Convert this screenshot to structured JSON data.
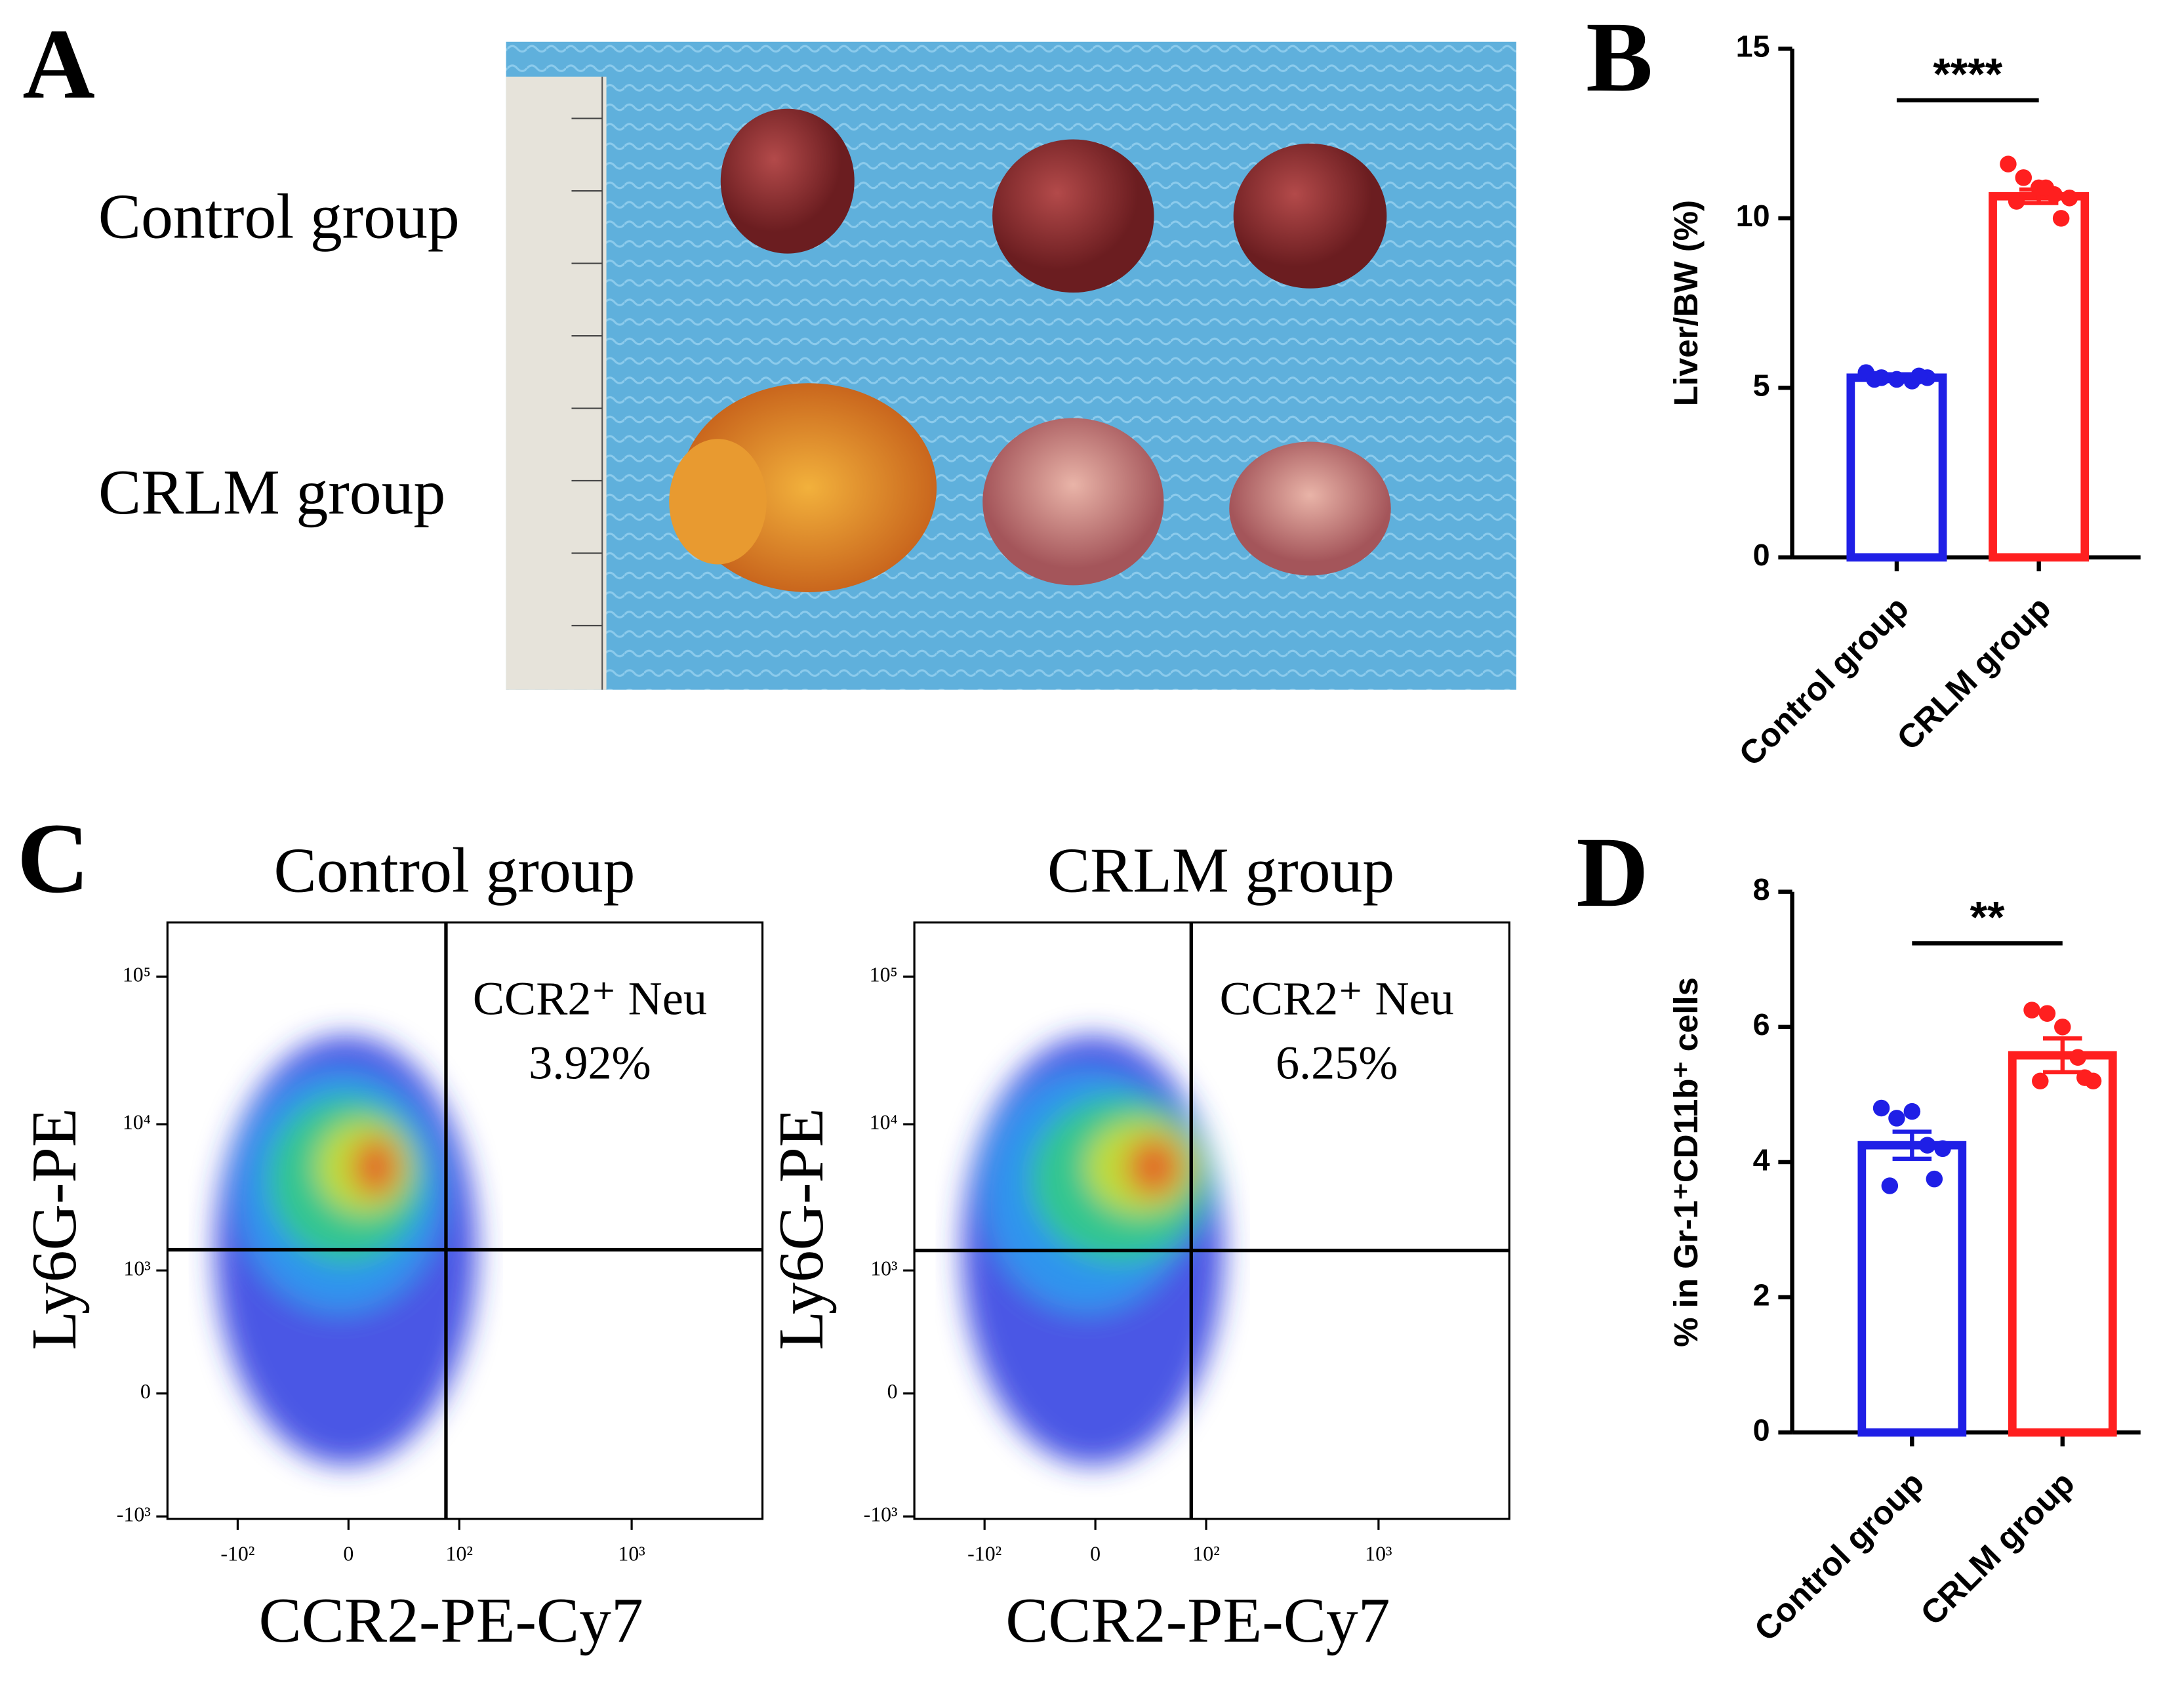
{
  "panel_labels": [
    "A",
    "B",
    "C",
    "D"
  ],
  "photo": {
    "row_labels": [
      "Control group",
      "CRLM group"
    ]
  },
  "chart_data": [
    {
      "type": "bar",
      "ylabel": "Liver/BW (%)",
      "categories": [
        "Control group",
        "CRLM group"
      ],
      "values": [
        5.3,
        10.65
      ],
      "errors": [
        0.1,
        0.2
      ],
      "colors": [
        "#1f1fe6",
        "#ff1f1f"
      ],
      "points": [
        [
          5.45,
          5.3,
          5.25,
          5.2,
          5.3,
          5.25,
          5.35
        ],
        [
          11.6,
          11.2,
          10.9,
          10.7,
          10.6,
          10.5,
          10.0,
          10.9
        ]
      ],
      "ylim": [
        0,
        15
      ],
      "yticks": [
        0,
        5,
        10,
        15
      ],
      "significance": "****"
    },
    {
      "type": "flow",
      "title": "Control group",
      "xlabel": "CCR2-PE-Cy7",
      "ylabel": "Ly6G-PE",
      "gate_label": "CCR2⁺ Neu",
      "gate_percent": "3.92%",
      "gate": [
        82,
        1395
      ],
      "xlim": [
        -262,
        5500
      ],
      "ylim": [
        -1040,
        233000
      ],
      "xticks": [
        {
          "value": -100,
          "label": "-10²"
        },
        0,
        {
          "value": 100,
          "label": "10²"
        },
        {
          "value": 1000,
          "label": "10³"
        }
      ],
      "yticks": [
        {
          "value": -1000,
          "label": "-10³"
        },
        0,
        {
          "value": 1000,
          "label": "10³"
        },
        {
          "value": 10000,
          "label": "10⁴"
        },
        {
          "value": 100000,
          "label": "10⁵"
        }
      ]
    },
    {
      "type": "flow",
      "title": "CRLM group",
      "xlabel": "CCR2-PE-Cy7",
      "ylabel": "Ly6G-PE",
      "gate_label": "CCR2⁺ Neu",
      "gate_percent": "6.25%",
      "gate": [
        80,
        1380
      ],
      "xlim": [
        -262,
        5500
      ],
      "ylim": [
        -1040,
        233000
      ],
      "xticks": [
        {
          "value": -100,
          "label": "-10²"
        },
        0,
        {
          "value": 100,
          "label": "10²"
        },
        {
          "value": 1000,
          "label": "10³"
        }
      ],
      "yticks": [
        {
          "value": -1000,
          "label": "-10³"
        },
        0,
        {
          "value": 1000,
          "label": "10³"
        },
        {
          "value": 10000,
          "label": "10⁴"
        },
        {
          "value": 100000,
          "label": "10⁵"
        }
      ]
    },
    {
      "type": "bar",
      "ylabel": "% in Gr-1⁺CD11b⁺ cells",
      "categories": [
        "Control group",
        "CRLM group"
      ],
      "values": [
        4.25,
        5.58
      ],
      "errors": [
        0.2,
        0.25
      ],
      "colors": [
        "#1f1fe6",
        "#ff1f1f"
      ],
      "points": [
        [
          4.8,
          4.65,
          4.75,
          4.25,
          4.2,
          3.65,
          3.75
        ],
        [
          6.25,
          6.2,
          6.0,
          5.55,
          5.2,
          5.2,
          5.25
        ]
      ],
      "ylim": [
        0,
        8
      ],
      "yticks": [
        0,
        2,
        4,
        6,
        8
      ],
      "significance": "**"
    }
  ]
}
